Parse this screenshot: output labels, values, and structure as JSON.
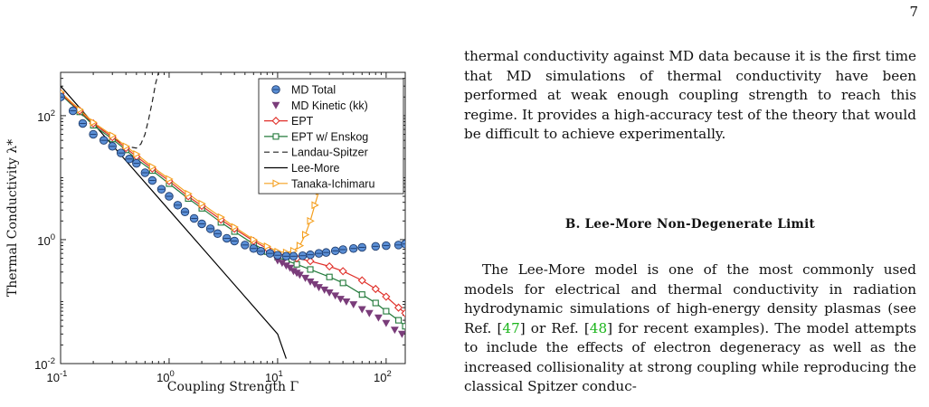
{
  "page_number": "7",
  "paragraph_1": "thermal conductivity against MD data because it is the first time that MD simulations of thermal conductivity have been performed at weak enough coupling strength to reach this regime. It provides a high-accuracy test of the theory that would be difficult to achieve experimentally.",
  "section_heading": "B.   Lee-More Non-Degenerate Limit",
  "paragraph_2": {
    "t1": "The Lee-More model is one of the most commonly used models for electrical and thermal conductivity in radiation hydrodynamic simulations of high-energy density plasmas (see Ref. [",
    "ref1": "47",
    "t2": "] or Ref. [",
    "ref2": "48",
    "t3": "] for recent examples). The model attempts to include the effects of electron degeneracy as well as the increased collisionality at strong coupling while reproducing the classical Spitzer conduc-"
  },
  "figure": {
    "x_tick_labels": [
      "10-1",
      "100",
      "101",
      "102"
    ],
    "y_tick_labels": [
      "10-2",
      "100",
      "102"
    ],
    "xlabel": "Coupling Strength Γ",
    "ylabel": "Thermal Conductivity λ*",
    "legend": [
      "MD Total",
      "MD Kinetic (kk)",
      "EPT",
      "EPT w/ Enskog",
      "Landau-Spitzer",
      "Lee-More",
      "Tanaka-Ichimaru"
    ]
  },
  "chart_data": {
    "type": "line",
    "x_scale": "log",
    "y_scale": "log",
    "xlim": [
      0.1,
      150
    ],
    "ylim": [
      0.01,
      500
    ],
    "xlabel": "Coupling Strength Γ",
    "ylabel": "Thermal Conductivity λ*",
    "legend_position": "top-right",
    "colors": {
      "md_total": "#5b8fd6",
      "md_kinetic": "#7a3d7a",
      "ept": "#e0302a",
      "enskog": "#237a3b",
      "landau": "#222222",
      "lee_more": "#000000",
      "tanaka": "#f5a020"
    },
    "series": [
      {
        "name": "MD Total",
        "style": "circles",
        "x": [
          0.1,
          0.13,
          0.16,
          0.2,
          0.25,
          0.3,
          0.36,
          0.43,
          0.5,
          0.6,
          0.7,
          0.85,
          1,
          1.2,
          1.4,
          1.7,
          2,
          2.4,
          2.8,
          3.4,
          4,
          5,
          6,
          7,
          8.5,
          10,
          12,
          14,
          17,
          20,
          24,
          28,
          34,
          40,
          50,
          60,
          80,
          100,
          130,
          150
        ],
        "y": [
          200,
          120,
          75,
          50,
          40,
          32,
          25,
          20,
          17,
          12,
          9,
          6.5,
          5,
          3.6,
          2.8,
          2.2,
          1.8,
          1.5,
          1.25,
          1.05,
          0.95,
          0.82,
          0.72,
          0.65,
          0.6,
          0.56,
          0.54,
          0.54,
          0.55,
          0.57,
          0.6,
          0.62,
          0.66,
          0.69,
          0.72,
          0.75,
          0.78,
          0.8,
          0.82,
          0.85
        ]
      },
      {
        "name": "MD Kinetic (kk)",
        "style": "triangles",
        "x": [
          10,
          11,
          12,
          13,
          14,
          15,
          16,
          18,
          20,
          22,
          24,
          27,
          30,
          34,
          38,
          43,
          50,
          60,
          70,
          85,
          100,
          120,
          140
        ],
        "y": [
          0.46,
          0.42,
          0.38,
          0.35,
          0.31,
          0.29,
          0.27,
          0.24,
          0.21,
          0.19,
          0.17,
          0.155,
          0.14,
          0.125,
          0.11,
          0.1,
          0.09,
          0.075,
          0.065,
          0.055,
          0.045,
          0.035,
          0.03
        ]
      },
      {
        "name": "EPT",
        "style": "line-diamond",
        "x": [
          0.1,
          0.15,
          0.2,
          0.3,
          0.4,
          0.5,
          0.7,
          1,
          1.5,
          2,
          3,
          4,
          6,
          8,
          10,
          12,
          15,
          20,
          30,
          40,
          60,
          80,
          100,
          130,
          150
        ],
        "y": [
          230,
          120,
          75,
          45,
          30,
          22,
          14,
          8.8,
          5,
          3.5,
          2.1,
          1.5,
          0.95,
          0.72,
          0.6,
          0.55,
          0.5,
          0.45,
          0.37,
          0.31,
          0.22,
          0.16,
          0.12,
          0.08,
          0.065
        ]
      },
      {
        "name": "EPT w/ Enskog",
        "style": "line-square",
        "x": [
          0.1,
          0.15,
          0.2,
          0.3,
          0.4,
          0.5,
          0.7,
          1,
          1.5,
          2,
          3,
          4,
          6,
          8,
          10,
          12,
          15,
          20,
          30,
          40,
          60,
          80,
          100,
          130,
          150
        ],
        "y": [
          220,
          115,
          70,
          42,
          28,
          20,
          13,
          8,
          4.6,
          3.2,
          1.9,
          1.35,
          0.85,
          0.64,
          0.52,
          0.46,
          0.4,
          0.33,
          0.25,
          0.2,
          0.13,
          0.095,
          0.07,
          0.05,
          0.04
        ]
      },
      {
        "name": "Landau-Spitzer",
        "style": "dashed",
        "x": [
          0.1,
          0.15,
          0.2,
          0.3,
          0.4,
          0.5,
          0.55,
          0.6,
          0.65,
          0.7,
          0.75,
          0.8
        ],
        "y": [
          230,
          110,
          75,
          45,
          32,
          30,
          35,
          50,
          90,
          170,
          330,
          500
        ]
      },
      {
        "name": "Lee-More",
        "style": "solid",
        "x": [
          0.1,
          1,
          10,
          12
        ],
        "y": [
          300,
          3,
          0.03,
          0.012
        ]
      },
      {
        "name": "Tanaka-Ichimaru",
        "style": "line-triangle-right",
        "x": [
          0.1,
          0.15,
          0.2,
          0.3,
          0.4,
          0.5,
          0.7,
          1,
          1.5,
          2,
          3,
          4,
          6,
          8,
          10,
          12,
          14,
          16,
          18,
          20,
          22,
          24,
          26
        ],
        "y": [
          240,
          125,
          78,
          48,
          32,
          24,
          15,
          9.5,
          5.5,
          3.8,
          2.3,
          1.6,
          1,
          0.78,
          0.64,
          0.62,
          0.66,
          0.8,
          1.2,
          2,
          3.6,
          6,
          12
        ]
      }
    ]
  }
}
